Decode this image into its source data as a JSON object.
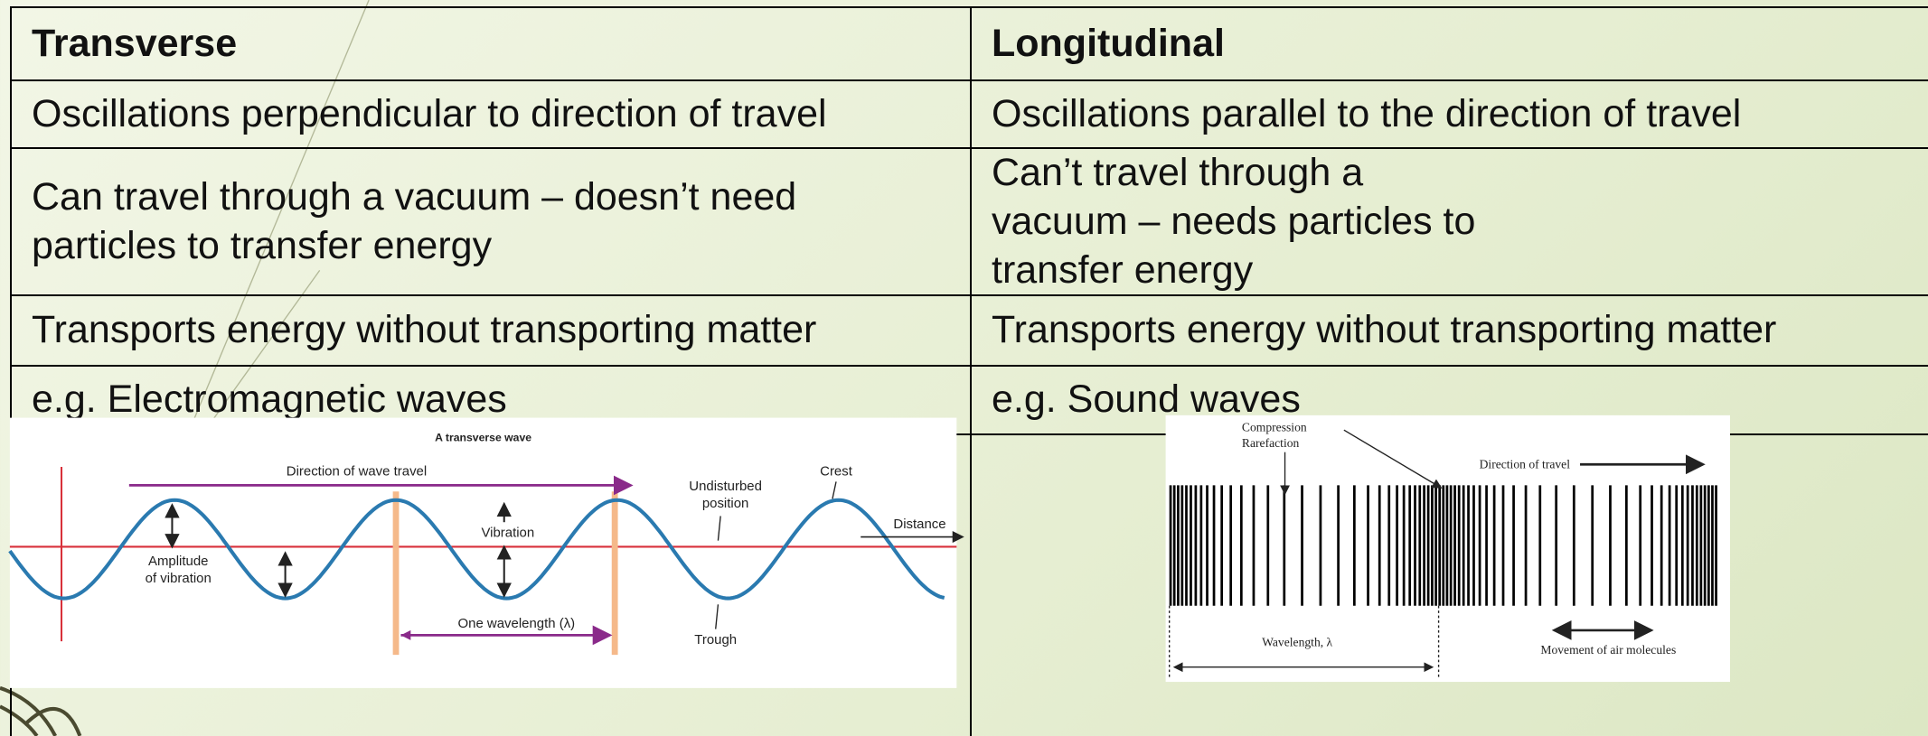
{
  "table": {
    "header": [
      "Transverse",
      "Longitudinal"
    ],
    "rows": [
      [
        "Oscillations perpendicular to direction of travel",
        "Oscillations parallel to the direction of travel"
      ],
      [
        "Can travel through a vacuum – doesn’t need particles to transfer energy",
        "Can’t travel through a vacuum – needs particles to transfer energy"
      ],
      [
        "Transports energy without transporting matter",
        "Transports energy without transporting matter"
      ],
      [
        "e.g. Electromagnetic waves",
        "e.g. Sound waves"
      ]
    ]
  },
  "diagrams": {
    "transverse": {
      "title": "A transverse wave",
      "direction": "Direction of wave travel",
      "undisturbed": [
        "Undisturbed",
        "position"
      ],
      "crest": "Crest",
      "distance": "Distance",
      "vibration": "Vibration",
      "amplitude": [
        "Amplitude",
        "of vibration"
      ],
      "wavelength": "One wavelength (λ)",
      "trough": "Trough"
    },
    "longitudinal": {
      "compression": "Compression",
      "rarefaction": "Rarefaction",
      "direction": "Direction of travel",
      "wavelength": "Wavelength, λ",
      "movement": "Movement of air molecules"
    }
  }
}
